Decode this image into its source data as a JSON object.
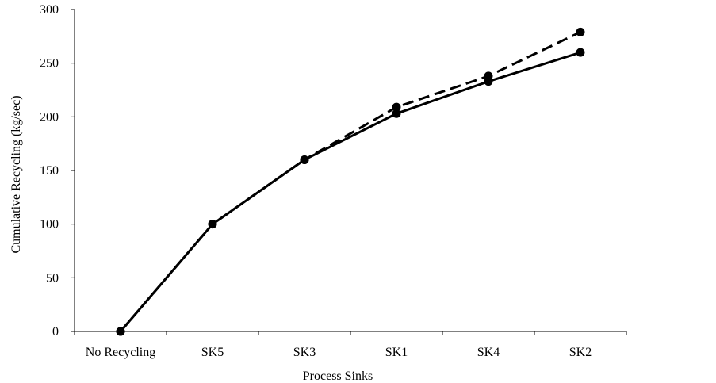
{
  "chart_data": {
    "type": "line",
    "title": "",
    "xlabel": "Process Sinks",
    "ylabel": "Cumulative Recycling (kg/sec)",
    "categories": [
      "No Recycling",
      "SK5",
      "SK3",
      "SK1",
      "SK4",
      "SK2"
    ],
    "ylim": [
      0,
      300
    ],
    "yticks": [
      0,
      50,
      100,
      150,
      200,
      250,
      300
    ],
    "grid": false,
    "legend": "none",
    "series": [
      {
        "values": [
          0,
          100,
          160,
          203,
          233,
          260
        ],
        "style": "solid",
        "marker": "circle",
        "color": "#000000"
      },
      {
        "values": [
          0,
          100,
          160,
          209,
          238,
          279
        ],
        "style": "dashed",
        "marker": "circle",
        "color": "#000000"
      }
    ]
  }
}
